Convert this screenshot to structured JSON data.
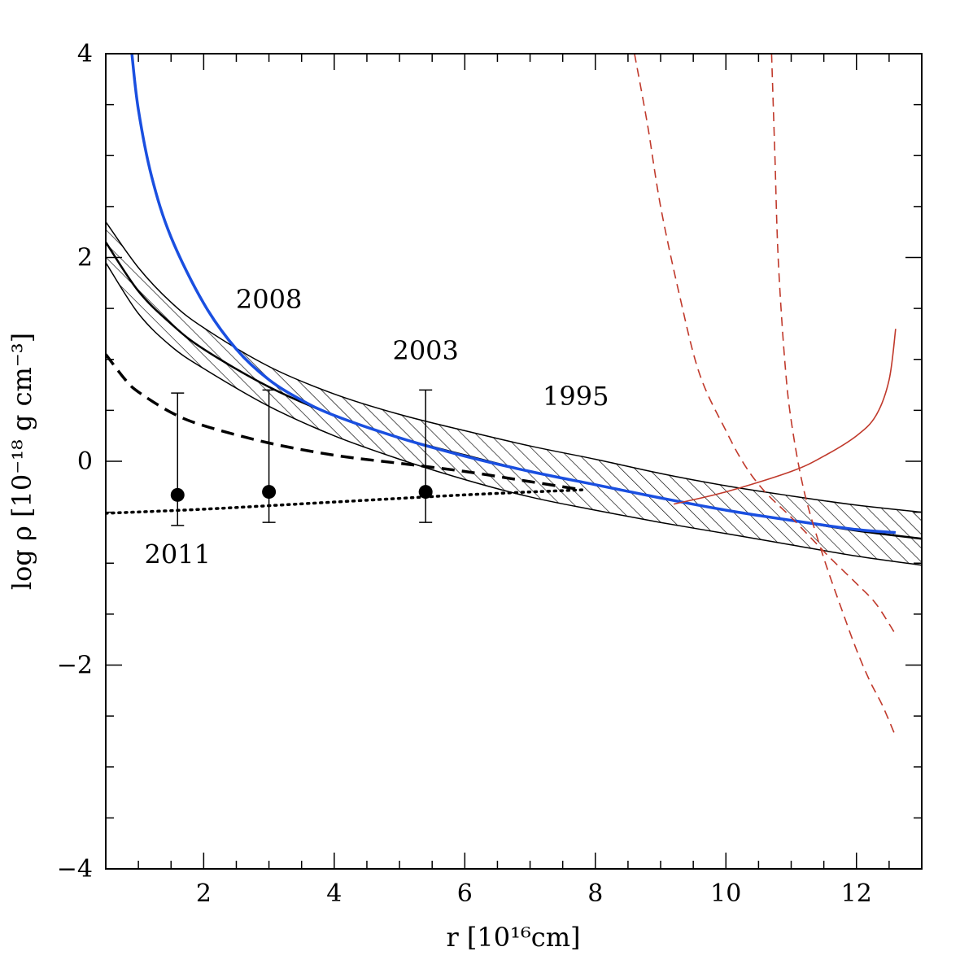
{
  "chart_data": {
    "type": "line",
    "title": "",
    "xlabel": "r [10¹⁶cm]",
    "ylabel": "log ρ [10⁻¹⁸ g cm⁻³]",
    "xlim": [
      0.5,
      13
    ],
    "ylim": [
      -4,
      4
    ],
    "x_ticks": [
      2,
      4,
      6,
      8,
      10,
      12
    ],
    "y_ticks": [
      -4,
      -2,
      0,
      2,
      4
    ],
    "x_tick_labels": [
      "2",
      "4",
      "6",
      "8",
      "10",
      "12"
    ],
    "y_tick_labels": [
      "−4",
      "−2",
      "0",
      "2",
      "4"
    ],
    "grid": false,
    "legend": "none",
    "colors": {
      "blue": "#1a4fe0",
      "red": "#c0392b",
      "black": "#000000"
    },
    "annotations": [
      {
        "text": "2008",
        "x": 3.0,
        "y": 1.5
      },
      {
        "text": "2003",
        "x": 5.4,
        "y": 1.0
      },
      {
        "text": "1995",
        "x": 7.7,
        "y": 0.55
      },
      {
        "text": "2011",
        "x": 1.6,
        "y": -1.0
      }
    ],
    "band": {
      "x": [
        0.5,
        1.0,
        1.5,
        2.0,
        3.0,
        4.0,
        5.0,
        6.0,
        7.0,
        8.0,
        9.0,
        10.0,
        11.0,
        12.0,
        13.0
      ],
      "upper": [
        2.35,
        1.9,
        1.56,
        1.31,
        0.93,
        0.66,
        0.46,
        0.3,
        0.15,
        0.02,
        -0.12,
        -0.24,
        -0.34,
        -0.43,
        -0.5
      ],
      "lower": [
        1.95,
        1.45,
        1.13,
        0.91,
        0.54,
        0.25,
        0.02,
        -0.18,
        -0.35,
        -0.48,
        -0.6,
        -0.71,
        -0.82,
        -0.93,
        -1.02
      ]
    },
    "series": [
      {
        "style": "black-solid",
        "x": [
          0.5,
          1.0,
          1.5,
          2.0,
          3.0,
          4.0,
          5.0,
          6.0,
          7.0,
          8.0,
          9.0,
          10.0,
          11.0,
          12.0,
          13.0
        ],
        "y": [
          2.15,
          1.67,
          1.35,
          1.1,
          0.73,
          0.45,
          0.23,
          0.06,
          -0.1,
          -0.23,
          -0.36,
          -0.48,
          -0.58,
          -0.68,
          -0.76
        ]
      },
      {
        "style": "blue-solid",
        "x": [
          0.9,
          1.0,
          1.2,
          1.5,
          2.0,
          2.5,
          3.0,
          3.5,
          4.0,
          5.0,
          6.0,
          7.0,
          8.0,
          9.0,
          10.0,
          11.0,
          12.0,
          12.6
        ],
        "y": [
          4.0,
          3.45,
          2.8,
          2.2,
          1.55,
          1.1,
          0.8,
          0.6,
          0.45,
          0.23,
          0.05,
          -0.1,
          -0.23,
          -0.36,
          -0.48,
          -0.58,
          -0.67,
          -0.7
        ]
      },
      {
        "style": "black-dashed",
        "x": [
          0.5,
          0.8,
          1.0,
          1.5,
          2.0,
          3.0,
          4.0,
          5.0,
          6.0,
          7.0,
          7.8
        ],
        "y": [
          1.05,
          0.8,
          0.68,
          0.48,
          0.35,
          0.18,
          0.06,
          -0.02,
          -0.1,
          -0.2,
          -0.28
        ]
      },
      {
        "style": "black-dotted",
        "x": [
          0.5,
          2.0,
          4.0,
          6.0,
          7.8
        ],
        "y": [
          -0.51,
          -0.47,
          -0.4,
          -0.33,
          -0.28
        ]
      },
      {
        "style": "red-solid",
        "x": [
          9.2,
          10.0,
          11.0,
          11.5,
          12.0,
          12.3,
          12.5,
          12.6
        ],
        "y": [
          -0.42,
          -0.3,
          -0.1,
          0.05,
          0.25,
          0.45,
          0.8,
          1.3
        ]
      },
      {
        "style": "red-dashed",
        "x": [
          8.6,
          8.8,
          9.0,
          9.3,
          9.6,
          10.0,
          10.3,
          10.6,
          11.0,
          11.3,
          11.6,
          12.0,
          12.3,
          12.6
        ],
        "y": [
          4.0,
          3.3,
          2.5,
          1.6,
          0.85,
          0.3,
          -0.05,
          -0.3,
          -0.55,
          -0.75,
          -0.95,
          -1.2,
          -1.4,
          -1.7
        ]
      },
      {
        "style": "red-dashed",
        "x": [
          10.7,
          10.75,
          10.8,
          10.9,
          11.0,
          11.2,
          11.5,
          11.8,
          12.0,
          12.2,
          12.4,
          12.6
        ],
        "y": [
          4.0,
          3.0,
          2.0,
          1.0,
          0.4,
          -0.3,
          -0.95,
          -1.5,
          -1.85,
          -2.15,
          -2.4,
          -2.7
        ]
      }
    ],
    "points": {
      "x": [
        1.6,
        3.0,
        5.4
      ],
      "y": [
        -0.33,
        -0.3,
        -0.3
      ],
      "err_low": [
        -0.63,
        -0.6,
        -0.6
      ],
      "err_high": [
        0.67,
        0.7,
        0.7
      ]
    }
  }
}
